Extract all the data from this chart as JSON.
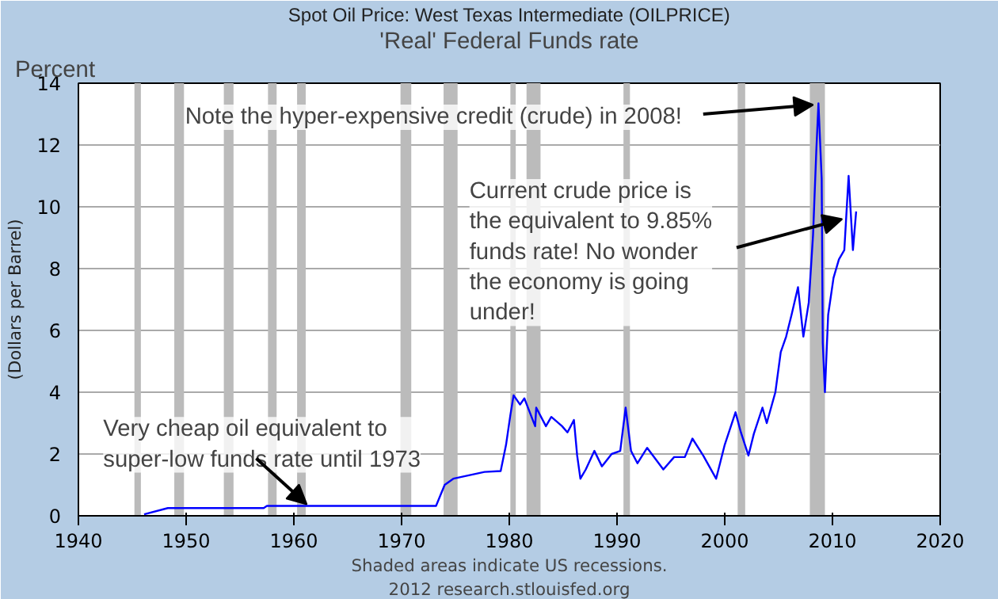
{
  "chart_data": {
    "type": "line",
    "title": "Spot Oil Price: West Texas Intermediate (OILPRICE)",
    "subtitle": "'Real' Federal Funds rate",
    "ylabel": "Percent",
    "x": [
      1946.1,
      1948.3,
      1957.2,
      1957.5,
      1973.2,
      1974.0,
      1974.8,
      1977.7,
      1979.2,
      1979.7,
      1980.1,
      1980.4,
      1981.0,
      1981.4,
      1982.4,
      1982.5,
      1983.4,
      1983.9,
      1984.9,
      1985.4,
      1986.0,
      1986.3,
      1986.6,
      1987.1,
      1987.9,
      1988.6,
      1989.5,
      1990.3,
      1990.8,
      1991.3,
      1991.9,
      1992.8,
      1994.3,
      1995.3,
      1996.3,
      1997.0,
      1998.0,
      1999.2,
      2000.0,
      2001.0,
      2001.5,
      2002.2,
      2002.7,
      2003.5,
      2003.9,
      2004.7,
      2005.2,
      2005.7,
      2006.2,
      2006.8,
      2007.3,
      2007.8,
      2008.2,
      2008.5,
      2008.7,
      2009.0,
      2009.1,
      2009.3,
      2009.6,
      2010.1,
      2010.6,
      2011.1,
      2011.5,
      2011.9,
      2012.2
    ],
    "series": [
      {
        "color": "#0000ff",
        "values": [
          0.05,
          0.25,
          0.25,
          0.32,
          0.32,
          1.0,
          1.2,
          1.42,
          1.45,
          2.3,
          3.26,
          3.9,
          3.6,
          3.8,
          2.9,
          3.5,
          2.9,
          3.2,
          2.9,
          2.7,
          3.1,
          1.95,
          1.2,
          1.5,
          2.1,
          1.6,
          2.0,
          2.1,
          3.5,
          2.1,
          1.7,
          2.2,
          1.5,
          1.9,
          1.9,
          2.5,
          1.95,
          1.2,
          2.3,
          3.35,
          2.7,
          1.95,
          2.65,
          3.5,
          3.0,
          4.0,
          5.3,
          5.8,
          6.5,
          7.4,
          5.8,
          6.9,
          9.1,
          11.8,
          13.35,
          10.9,
          5.6,
          4.0,
          6.5,
          7.7,
          8.3,
          8.6,
          11.0,
          8.6,
          9.85
        ]
      }
    ],
    "xlim": [
      1940,
      2020
    ],
    "xticks": [
      1940,
      1950,
      1960,
      1970,
      1980,
      1990,
      2000,
      2010,
      2020
    ],
    "ylim": [
      0,
      14
    ],
    "yticks": [
      0,
      2,
      4,
      6,
      8,
      10,
      12,
      14
    ],
    "grid": "y",
    "marker": "none",
    "line_style": "solid",
    "bands": [
      {
        "axis": "x",
        "from": 1945.2,
        "to": 1945.8,
        "color": "#bbbbbb"
      },
      {
        "axis": "x",
        "from": 1948.9,
        "to": 1949.8,
        "color": "#bbbbbb"
      },
      {
        "axis": "x",
        "from": 1953.5,
        "to": 1954.4,
        "color": "#bbbbbb"
      },
      {
        "axis": "x",
        "from": 1957.6,
        "to": 1958.4,
        "color": "#bbbbbb"
      },
      {
        "axis": "x",
        "from": 1960.3,
        "to": 1961.1,
        "color": "#bbbbbb"
      },
      {
        "axis": "x",
        "from": 1969.9,
        "to": 1970.9,
        "color": "#bbbbbb"
      },
      {
        "axis": "x",
        "from": 1973.9,
        "to": 1975.2,
        "color": "#bbbbbb"
      },
      {
        "axis": "x",
        "from": 1980.1,
        "to": 1980.6,
        "color": "#bbbbbb"
      },
      {
        "axis": "x",
        "from": 1981.6,
        "to": 1982.9,
        "color": "#bbbbbb"
      },
      {
        "axis": "x",
        "from": 1990.6,
        "to": 1991.2,
        "color": "#bbbbbb"
      },
      {
        "axis": "x",
        "from": 2001.2,
        "to": 2001.9,
        "color": "#bbbbbb"
      },
      {
        "axis": "x",
        "from": 2007.9,
        "to": 2009.3,
        "color": "#bbbbbb"
      }
    ],
    "annotations": [
      {
        "text": "Very cheap oil equivalent to\nsuper-low funds rate until 1973",
        "x": 1961.2,
        "y": 0.37
      },
      {
        "text": "Note the hyper-expensive credit (crude) in 2008!",
        "x": 2008.2,
        "y": 13.3
      },
      {
        "text": "Current crude price is\nthe equivalent to 9.85%\nfunds rate! No wonder\nthe economy is going\nunder!",
        "x": 2010.9,
        "y": 9.6
      },
      "(Dollars per Barrel)",
      "Shaded areas indicate US recessions.",
      "2012 research.stlouisfed.org"
    ]
  }
}
